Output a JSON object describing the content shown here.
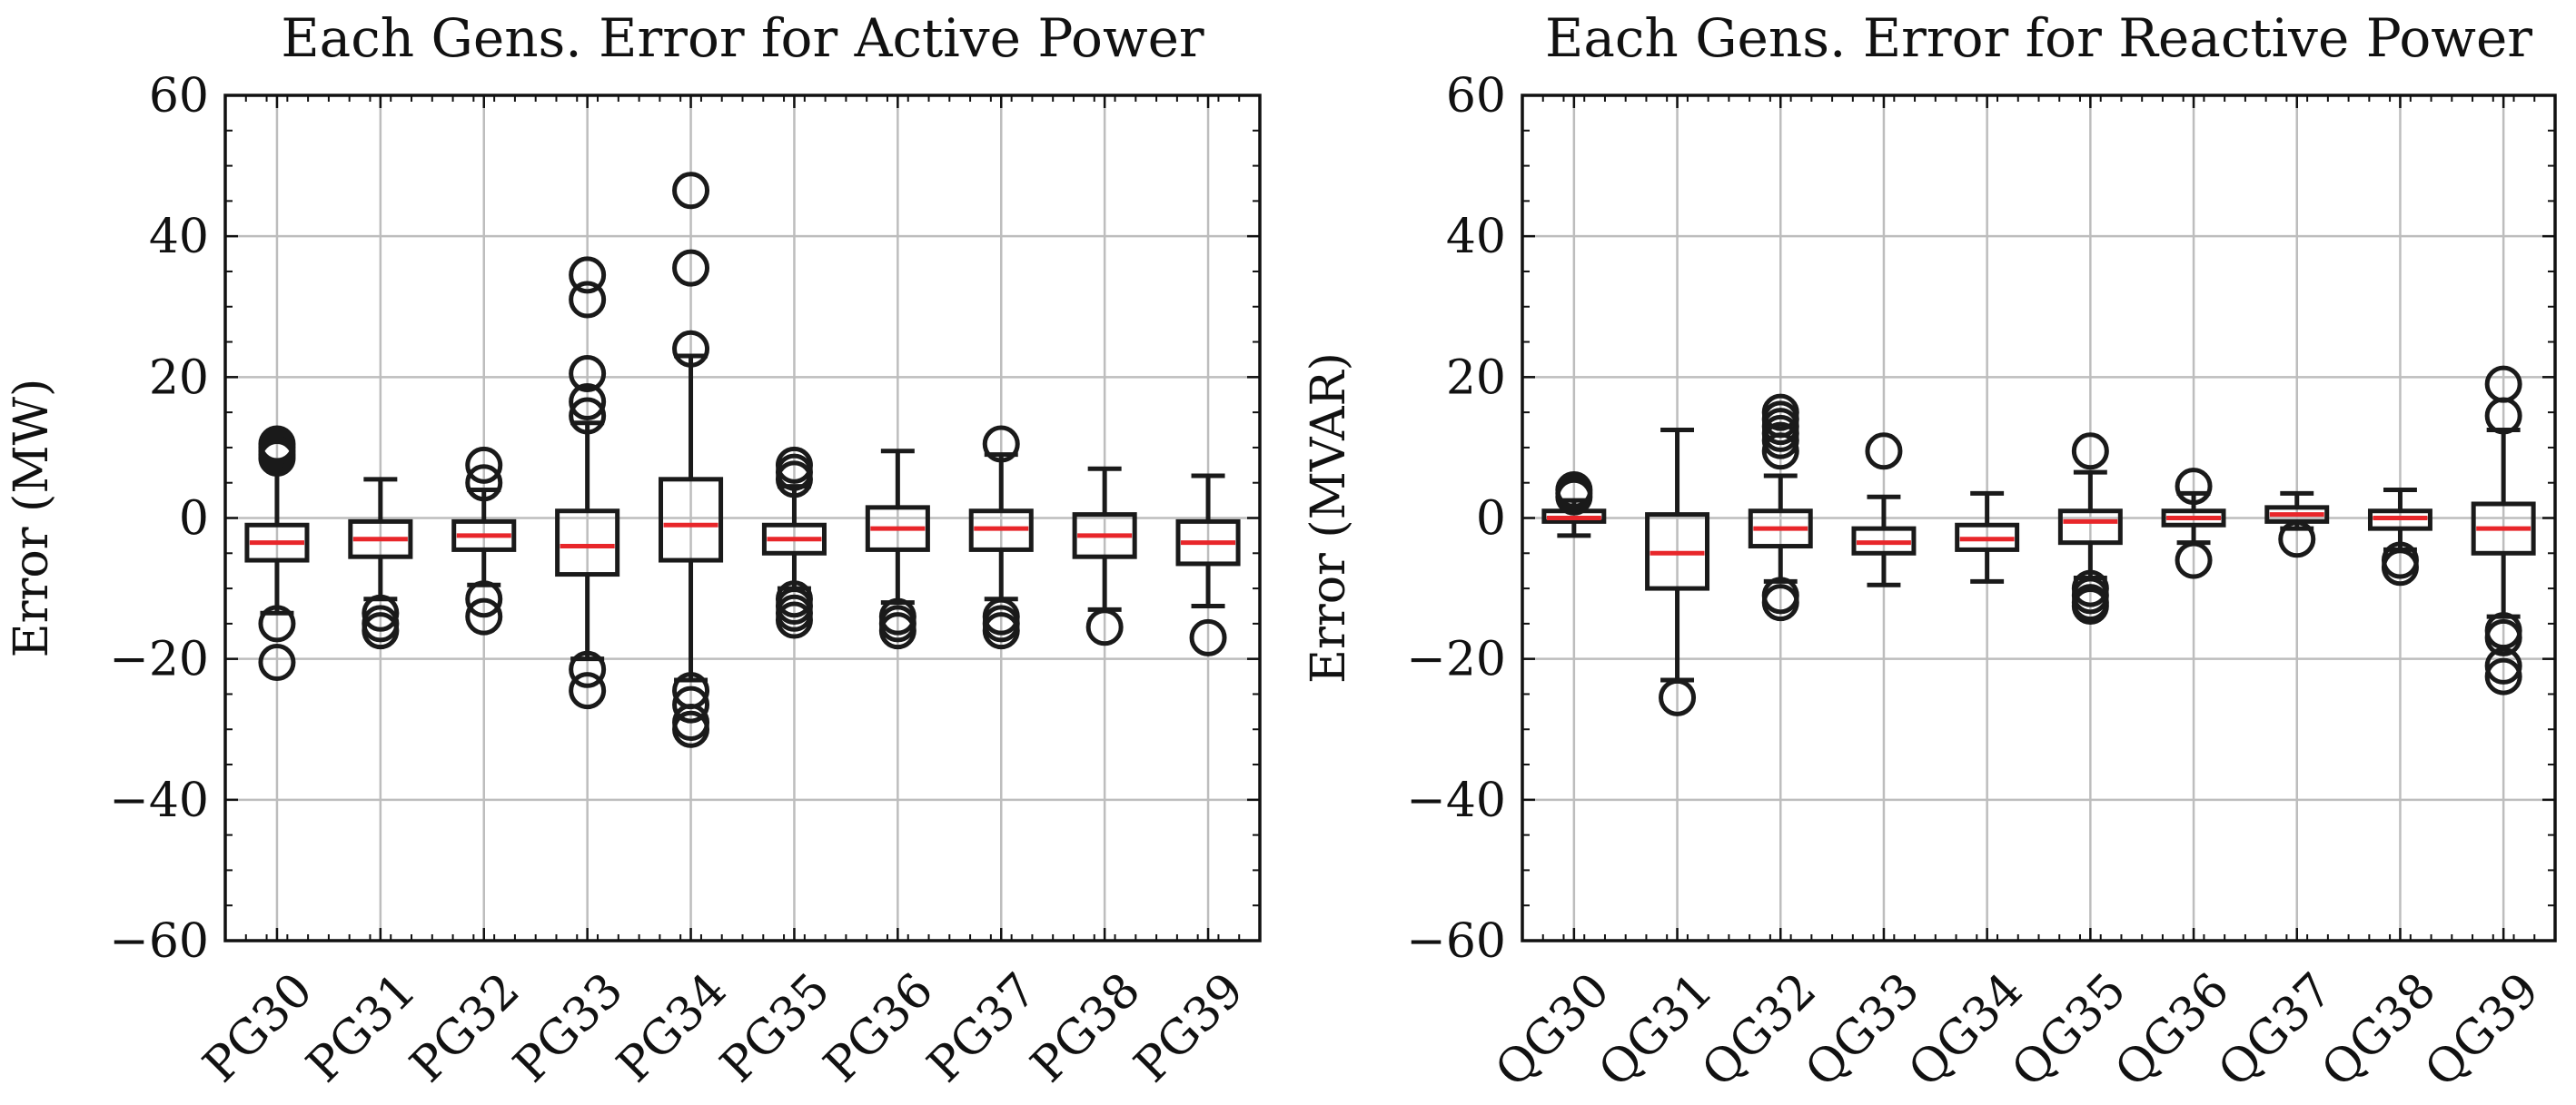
{
  "chart_data": [
    {
      "type": "boxplot",
      "title": "Each Gens. Error for Active Power",
      "xlabel": "",
      "ylabel": "Error (MW)",
      "ylim": [
        -60,
        60
      ],
      "yticks": [
        -60,
        -40,
        -20,
        0,
        20,
        40,
        60
      ],
      "ytick_labels": [
        "−60",
        "−40",
        "−20",
        "0",
        "20",
        "40",
        "60"
      ],
      "grid": true,
      "categories": [
        "PG30",
        "PG31",
        "PG32",
        "PG33",
        "PG34",
        "PG35",
        "PG36",
        "PG37",
        "PG38",
        "PG39"
      ],
      "boxes": [
        {
          "whislo": -13.5,
          "q1": -6.0,
          "med": -3.5,
          "q3": -1.0,
          "whishi": 8.0,
          "fliers": [
            10.5,
            10.0,
            9.5,
            9.0,
            8.5,
            -15.0,
            -20.5
          ]
        },
        {
          "whislo": -11.5,
          "q1": -5.5,
          "med": -3.0,
          "q3": -0.5,
          "whishi": 5.5,
          "fliers": [
            -13.5,
            -15.0,
            -16.0
          ]
        },
        {
          "whislo": -9.5,
          "q1": -4.5,
          "med": -2.5,
          "q3": -0.5,
          "whishi": 4.0,
          "fliers": [
            7.5,
            5.0,
            -11.5,
            -14.0
          ]
        },
        {
          "whislo": -20.0,
          "q1": -8.0,
          "med": -4.0,
          "q3": 1.0,
          "whishi": 13.5,
          "fliers": [
            34.5,
            31.0,
            20.5,
            16.5,
            14.5,
            -21.5,
            -24.5
          ]
        },
        {
          "whislo": -23.0,
          "q1": -6.0,
          "med": -1.0,
          "q3": 5.5,
          "whishi": 23.0,
          "fliers": [
            46.5,
            35.5,
            24.0,
            -24.5,
            -26.5,
            -29.0,
            -30.0
          ]
        },
        {
          "whislo": -10.0,
          "q1": -5.0,
          "med": -3.0,
          "q3": -1.0,
          "whishi": 4.5,
          "fliers": [
            7.5,
            6.5,
            5.5,
            -11.5,
            -12.5,
            -13.5,
            -14.5
          ]
        },
        {
          "whislo": -12.0,
          "q1": -4.5,
          "med": -1.5,
          "q3": 1.5,
          "whishi": 9.5,
          "fliers": [
            -14.0,
            -15.0,
            -16.0
          ]
        },
        {
          "whislo": -11.5,
          "q1": -4.5,
          "med": -1.5,
          "q3": 1.0,
          "whishi": 9.0,
          "fliers": [
            10.5,
            -14.0,
            -15.0,
            -16.0
          ]
        },
        {
          "whislo": -13.0,
          "q1": -5.5,
          "med": -2.5,
          "q3": 0.5,
          "whishi": 7.0,
          "fliers": [
            -15.5
          ]
        },
        {
          "whislo": -12.5,
          "q1": -6.5,
          "med": -3.5,
          "q3": -0.5,
          "whishi": 6.0,
          "fliers": [
            -17.0
          ]
        }
      ]
    },
    {
      "type": "boxplot",
      "title": "Each Gens. Error for Reactive Power",
      "xlabel": "",
      "ylabel": "Error (MVAR)",
      "ylim": [
        -60,
        60
      ],
      "yticks": [
        -60,
        -40,
        -20,
        0,
        20,
        40,
        60
      ],
      "ytick_labels": [
        "−60",
        "−40",
        "−20",
        "0",
        "20",
        "40",
        "60"
      ],
      "grid": true,
      "categories": [
        "QG30",
        "QG31",
        "QG32",
        "QG33",
        "QG34",
        "QG35",
        "QG36",
        "QG37",
        "QG38",
        "QG39"
      ],
      "boxes": [
        {
          "whislo": -2.5,
          "q1": -0.5,
          "med": 0.0,
          "q3": 1.0,
          "whishi": 2.5,
          "fliers": [
            4.0,
            3.5,
            3.0
          ]
        },
        {
          "whislo": -23.0,
          "q1": -10.0,
          "med": -5.0,
          "q3": 0.5,
          "whishi": 12.5,
          "fliers": [
            -25.5
          ]
        },
        {
          "whislo": -9.0,
          "q1": -4.0,
          "med": -1.5,
          "q3": 1.0,
          "whishi": 6.0,
          "fliers": [
            15.0,
            14.0,
            13.0,
            12.0,
            11.0,
            9.5,
            -11.0,
            -12.0
          ]
        },
        {
          "whislo": -9.5,
          "q1": -5.0,
          "med": -3.5,
          "q3": -1.5,
          "whishi": 3.0,
          "fliers": [
            9.5
          ]
        },
        {
          "whislo": -9.0,
          "q1": -4.5,
          "med": -3.0,
          "q3": -1.0,
          "whishi": 3.5,
          "fliers": []
        },
        {
          "whislo": -8.5,
          "q1": -3.5,
          "med": -0.5,
          "q3": 1.0,
          "whishi": 6.5,
          "fliers": [
            9.5,
            -10.0,
            -11.0,
            -12.0,
            -12.5
          ]
        },
        {
          "whislo": -3.5,
          "q1": -1.0,
          "med": 0.0,
          "q3": 1.0,
          "whishi": 3.5,
          "fliers": [
            4.5,
            -6.0
          ]
        },
        {
          "whislo": -1.5,
          "q1": -0.5,
          "med": 0.5,
          "q3": 1.5,
          "whishi": 3.5,
          "fliers": [
            -3.0
          ]
        },
        {
          "whislo": -4.5,
          "q1": -1.5,
          "med": 0.0,
          "q3": 1.0,
          "whishi": 4.0,
          "fliers": [
            -6.0,
            -7.0
          ]
        },
        {
          "whislo": -14.0,
          "q1": -5.0,
          "med": -1.5,
          "q3": 2.0,
          "whishi": 12.5,
          "fliers": [
            19.0,
            14.5,
            -16.0,
            -17.0,
            -21.0,
            -22.5
          ]
        }
      ]
    }
  ],
  "colors": {
    "median": "#e8262a",
    "box": "#1a1a1a",
    "grid": "#bdbdbd",
    "background": "#ffffff"
  }
}
